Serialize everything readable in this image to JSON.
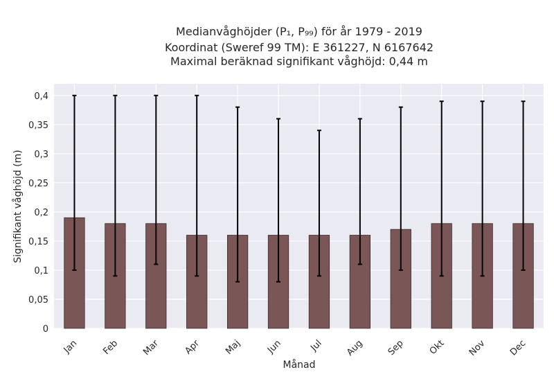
{
  "chart_data": {
    "type": "bar",
    "title_lines": [
      "Medianvåghöjder (P₁, P₉₉) för år 1979 - 2019",
      "Koordinat (Sweref 99 TM): E 361227, N 6167642",
      "Maximal beräknad signifikant våghöjd: 0,44 m"
    ],
    "xlabel": "Månad",
    "ylabel": "Signifikant våghöjd (m)",
    "categories": [
      "Jan",
      "Feb",
      "Mar",
      "Apr",
      "Maj",
      "Jun",
      "Jul",
      "Aug",
      "Sep",
      "Okt",
      "Nov",
      "Dec"
    ],
    "values": [
      0.19,
      0.18,
      0.18,
      0.16,
      0.16,
      0.16,
      0.16,
      0.16,
      0.17,
      0.18,
      0.18,
      0.18
    ],
    "error_low": [
      0.1,
      0.09,
      0.11,
      0.09,
      0.08,
      0.08,
      0.09,
      0.11,
      0.1,
      0.09,
      0.09,
      0.1
    ],
    "error_high": [
      0.4,
      0.4,
      0.4,
      0.4,
      0.38,
      0.36,
      0.34,
      0.36,
      0.38,
      0.39,
      0.39,
      0.39
    ],
    "ylim": [
      0,
      0.42
    ],
    "yticks": [
      "0",
      "0,05",
      "0,1",
      "0,15",
      "0,2",
      "0,25",
      "0,3",
      "0,35",
      "0,4"
    ],
    "grid": true,
    "colors": {
      "bar_fill": "#7a5656",
      "bar_stroke": "#3a2a2a",
      "error_bar": "#000000",
      "plot_background": "#eaeaf2",
      "grid": "#ffffff"
    }
  }
}
